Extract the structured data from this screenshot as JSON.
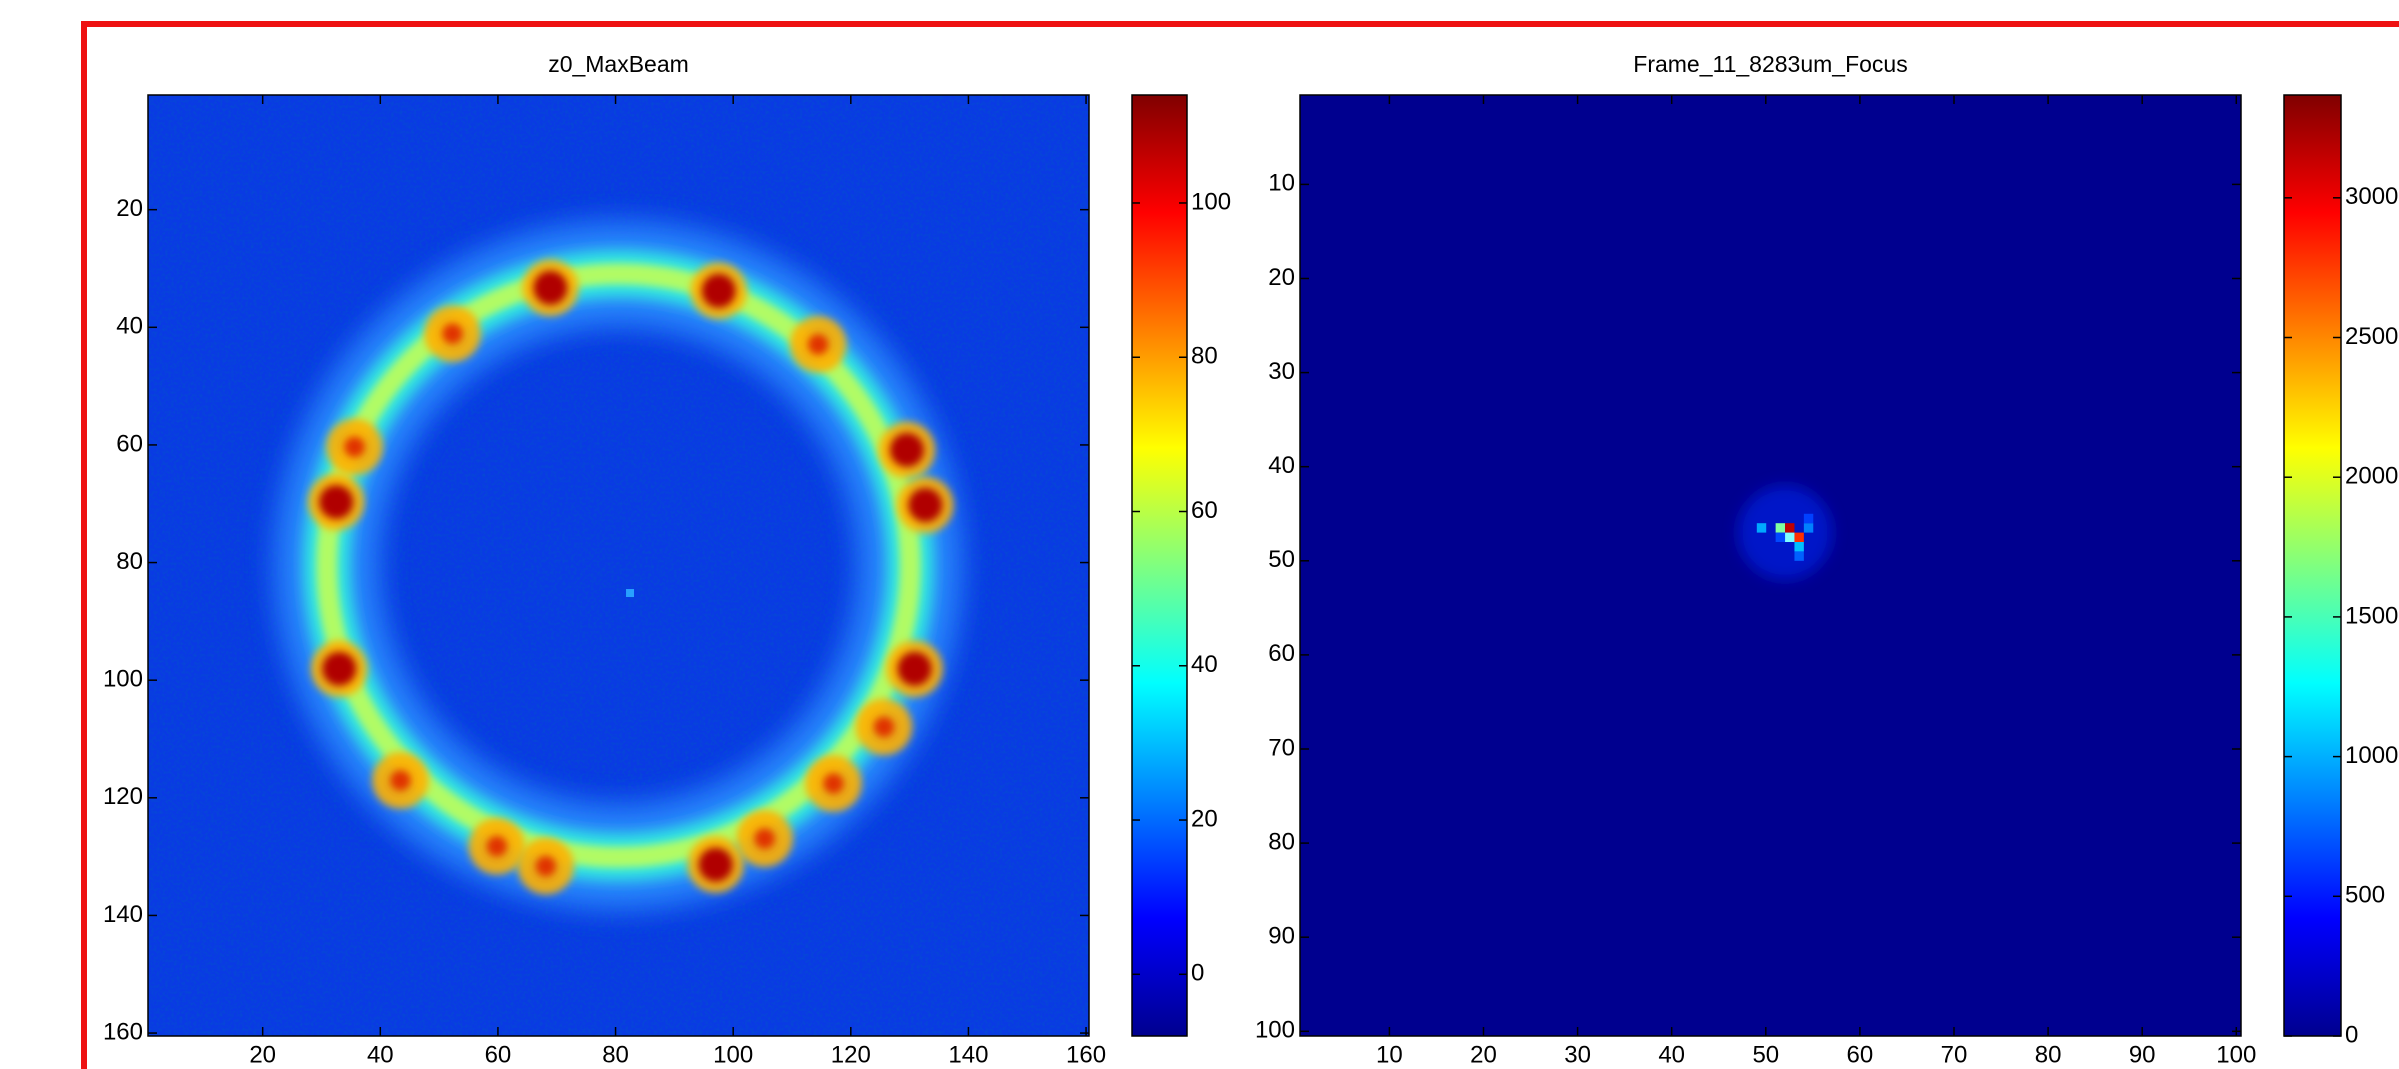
{
  "chart_data": [
    {
      "type": "heatmap",
      "title": "z0_MaxBeam",
      "colormap": "jet",
      "xlim": [
        0.5,
        160.5
      ],
      "ylim": [
        0.5,
        160.5
      ],
      "y_reversed": true,
      "xticks": [
        20,
        40,
        60,
        80,
        100,
        120,
        140,
        160
      ],
      "yticks": [
        20,
        40,
        60,
        80,
        100,
        120,
        140,
        160
      ],
      "clim": [
        -8,
        114
      ],
      "cticks": [
        0,
        20,
        40,
        60,
        80,
        100
      ]
    },
    {
      "type": "heatmap",
      "title": "Frame_11_8283um_Focus",
      "colormap": "jet",
      "xlim": [
        0.5,
        100.5
      ],
      "ylim": [
        0.5,
        100.5
      ],
      "y_reversed": true,
      "xticks": [
        10,
        20,
        30,
        40,
        50,
        60,
        70,
        80,
        90,
        100
      ],
      "yticks": [
        10,
        20,
        30,
        40,
        50,
        60,
        70,
        80,
        90,
        100
      ],
      "clim": [
        0,
        3368
      ],
      "cticks": [
        0,
        500,
        1000,
        1500,
        2000,
        2500,
        3000
      ]
    }
  ]
}
